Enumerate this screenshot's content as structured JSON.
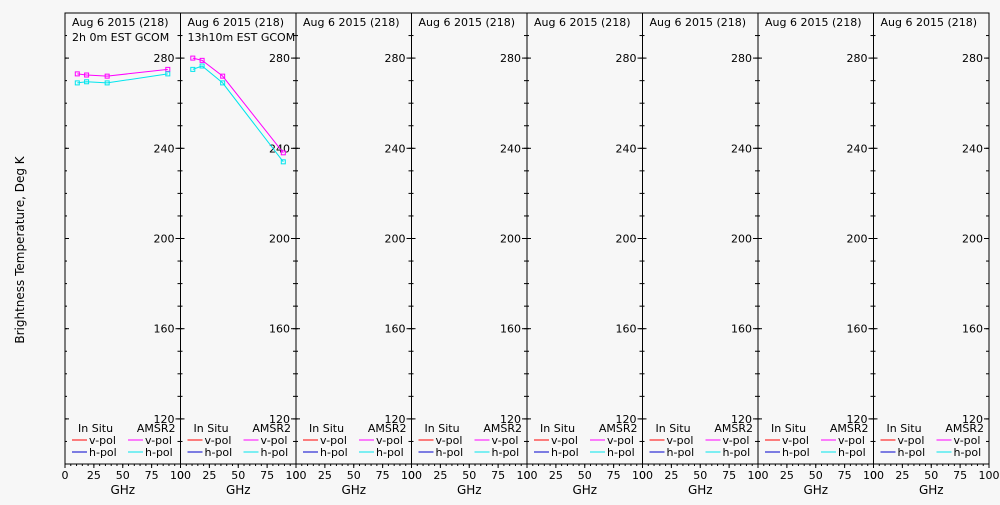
{
  "figure": {
    "ylabel": "Brightness Temperature, Deg K",
    "xlabel": "GHz",
    "legend": {
      "in_situ": "In Situ",
      "amsr2": "AMSR2",
      "vpol": "v-pol",
      "hpol": "h-pol"
    },
    "colors": {
      "insitu_v": "#ff0000",
      "insitu_h": "#0000cc",
      "amsr2_v": "#ff00ff",
      "amsr2_h": "#00e5ee"
    }
  },
  "chart_data": [
    {
      "type": "line",
      "title": "Aug 6 2015 (218)",
      "subtitle": "2h 0m EST GCOM",
      "xlim": [
        0,
        100
      ],
      "ylim": [
        100,
        300
      ],
      "xticks": [
        0,
        25,
        50,
        75,
        100
      ],
      "yticks": [
        120,
        160,
        200,
        240,
        280
      ],
      "series": [
        {
          "name": "AMSR2 v-pol",
          "x": [
            10.65,
            18.7,
            36.5,
            89.0
          ],
          "y": [
            273.0,
            272.5,
            272.0,
            275.0
          ]
        },
        {
          "name": "AMSR2 h-pol",
          "x": [
            10.65,
            18.7,
            36.5,
            89.0
          ],
          "y": [
            269.0,
            269.5,
            269.0,
            273.0
          ]
        }
      ]
    },
    {
      "type": "line",
      "title": "Aug 6 2015 (218)",
      "subtitle": "13h10m EST GCOM",
      "xlim": [
        0,
        100
      ],
      "ylim": [
        100,
        300
      ],
      "xticks": [
        0,
        25,
        50,
        75,
        100
      ],
      "yticks": [
        120,
        160,
        200,
        240,
        280
      ],
      "series": [
        {
          "name": "AMSR2 v-pol",
          "x": [
            10.65,
            18.7,
            36.5,
            89.0
          ],
          "y": [
            280.0,
            279.0,
            272.0,
            238.0
          ]
        },
        {
          "name": "AMSR2 h-pol",
          "x": [
            10.65,
            18.7,
            36.5,
            89.0
          ],
          "y": [
            275.0,
            276.5,
            269.0,
            234.0
          ]
        }
      ]
    },
    {
      "type": "line",
      "title": "Aug 6 2015 (218)",
      "subtitle": "",
      "xlim": [
        0,
        100
      ],
      "ylim": [
        100,
        300
      ],
      "xticks": [
        0,
        25,
        50,
        75,
        100
      ],
      "yticks": [
        120,
        160,
        200,
        240,
        280
      ],
      "series": []
    },
    {
      "type": "line",
      "title": "Aug 6 2015 (218)",
      "subtitle": "",
      "xlim": [
        0,
        100
      ],
      "ylim": [
        100,
        300
      ],
      "xticks": [
        0,
        25,
        50,
        75,
        100
      ],
      "yticks": [
        120,
        160,
        200,
        240,
        280
      ],
      "series": []
    },
    {
      "type": "line",
      "title": "Aug 6 2015 (218)",
      "subtitle": "",
      "xlim": [
        0,
        100
      ],
      "ylim": [
        100,
        300
      ],
      "xticks": [
        0,
        25,
        50,
        75,
        100
      ],
      "yticks": [
        120,
        160,
        200,
        240,
        280
      ],
      "series": []
    },
    {
      "type": "line",
      "title": "Aug 6 2015 (218)",
      "subtitle": "",
      "xlim": [
        0,
        100
      ],
      "ylim": [
        100,
        300
      ],
      "xticks": [
        0,
        25,
        50,
        75,
        100
      ],
      "yticks": [
        120,
        160,
        200,
        240,
        280
      ],
      "series": []
    },
    {
      "type": "line",
      "title": "Aug 6 2015 (218)",
      "subtitle": "",
      "xlim": [
        0,
        100
      ],
      "ylim": [
        100,
        300
      ],
      "xticks": [
        0,
        25,
        50,
        75,
        100
      ],
      "yticks": [
        120,
        160,
        200,
        240,
        280
      ],
      "series": []
    },
    {
      "type": "line",
      "title": "Aug 6 2015 (218)",
      "subtitle": "",
      "xlim": [
        0,
        100
      ],
      "ylim": [
        100,
        300
      ],
      "xticks": [
        0,
        25,
        50,
        75,
        100
      ],
      "yticks": [
        120,
        160,
        200,
        240,
        280
      ],
      "series": []
    }
  ]
}
